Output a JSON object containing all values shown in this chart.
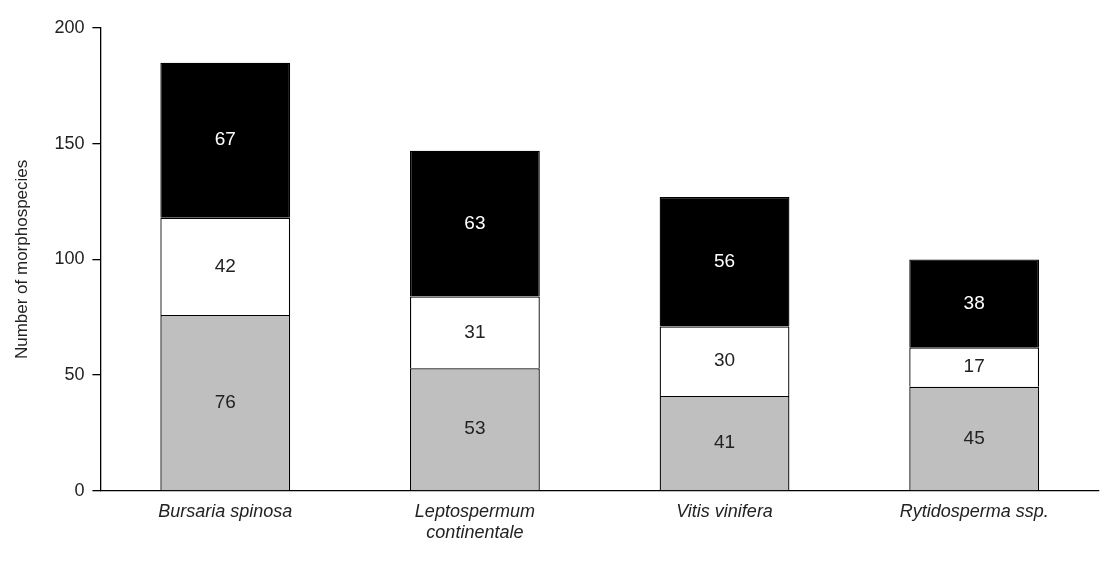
{
  "chart_data": {
    "type": "bar",
    "ylabel": "Number of morphospecies",
    "categories": [
      "Bursaria spinosa",
      "Leptospermum continentale",
      "Vitis vinifera",
      "Rytidosperma ssp."
    ],
    "series": [
      {
        "color": "#bfbfbf",
        "values": [
          76,
          53,
          41,
          45
        ]
      },
      {
        "color": "#ffffff",
        "values": [
          42,
          31,
          30,
          17
        ]
      },
      {
        "color": "#000000",
        "values": [
          67,
          63,
          56,
          38
        ]
      }
    ],
    "stacked": true,
    "ylim": [
      0,
      200
    ],
    "yticks": [
      0,
      50,
      100,
      150,
      200
    ],
    "grid": false,
    "legend": false,
    "data_labels": true
  }
}
